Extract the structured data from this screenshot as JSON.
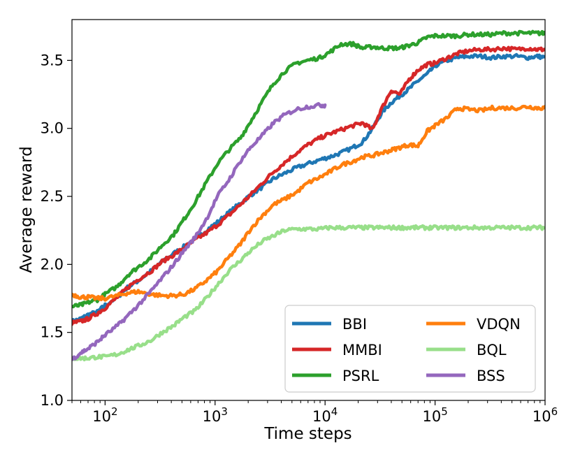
{
  "chart_data": {
    "type": "line",
    "xscale": "log",
    "xlabel": "Time steps",
    "ylabel": "Average reward",
    "xlim": [
      50,
      1000000
    ],
    "ylim": [
      1.0,
      3.8
    ],
    "grid": false,
    "legend_position": "lower-right",
    "legend_columns": 2,
    "xticks": [
      {
        "value": 100,
        "base": "10",
        "exp": "2"
      },
      {
        "value": 1000,
        "base": "10",
        "exp": "3"
      },
      {
        "value": 10000,
        "base": "10",
        "exp": "4"
      },
      {
        "value": 100000,
        "base": "10",
        "exp": "5"
      },
      {
        "value": 1000000,
        "base": "10",
        "exp": "6"
      }
    ],
    "yticks": [
      {
        "value": 1.0,
        "label": "1.0"
      },
      {
        "value": 1.5,
        "label": "1.5"
      },
      {
        "value": 2.0,
        "label": "2.0"
      },
      {
        "value": 2.5,
        "label": "2.5"
      },
      {
        "value": 3.0,
        "label": "3.0"
      },
      {
        "value": 3.5,
        "label": "3.5"
      }
    ],
    "series": [
      {
        "name": "BBI",
        "color": "#1f77b4",
        "points": [
          [
            50,
            1.58
          ],
          [
            60,
            1.6
          ],
          [
            70,
            1.63
          ],
          [
            85,
            1.65
          ],
          [
            100,
            1.7
          ],
          [
            130,
            1.76
          ],
          [
            160,
            1.83
          ],
          [
            200,
            1.88
          ],
          [
            260,
            1.95
          ],
          [
            330,
            2.02
          ],
          [
            420,
            2.08
          ],
          [
            520,
            2.13
          ],
          [
            660,
            2.19
          ],
          [
            830,
            2.25
          ],
          [
            1050,
            2.31
          ],
          [
            1330,
            2.38
          ],
          [
            1700,
            2.45
          ],
          [
            2100,
            2.51
          ],
          [
            2700,
            2.57
          ],
          [
            3400,
            2.63
          ],
          [
            4300,
            2.67
          ],
          [
            5500,
            2.71
          ],
          [
            7000,
            2.74
          ],
          [
            9000,
            2.77
          ],
          [
            11000,
            2.79
          ],
          [
            14000,
            2.82
          ],
          [
            18000,
            2.86
          ],
          [
            22000,
            2.9
          ],
          [
            27000,
            3.0
          ],
          [
            33000,
            3.12
          ],
          [
            40000,
            3.19
          ],
          [
            48000,
            3.24
          ],
          [
            58000,
            3.29
          ],
          [
            70000,
            3.35
          ],
          [
            85000,
            3.4
          ],
          [
            100000,
            3.46
          ],
          [
            130000,
            3.5
          ],
          [
            160000,
            3.52
          ],
          [
            200000,
            3.53
          ],
          [
            260000,
            3.53
          ],
          [
            330000,
            3.52
          ],
          [
            420000,
            3.53
          ],
          [
            550000,
            3.53
          ],
          [
            700000,
            3.52
          ],
          [
            850000,
            3.53
          ],
          [
            1000000,
            3.52
          ]
        ]
      },
      {
        "name": "MMBI",
        "color": "#d62728",
        "points": [
          [
            50,
            1.57
          ],
          [
            60,
            1.58
          ],
          [
            70,
            1.6
          ],
          [
            85,
            1.64
          ],
          [
            100,
            1.68
          ],
          [
            130,
            1.76
          ],
          [
            160,
            1.83
          ],
          [
            200,
            1.89
          ],
          [
            260,
            1.95
          ],
          [
            330,
            2.02
          ],
          [
            420,
            2.07
          ],
          [
            520,
            2.12
          ],
          [
            660,
            2.18
          ],
          [
            830,
            2.23
          ],
          [
            1050,
            2.29
          ],
          [
            1330,
            2.36
          ],
          [
            1700,
            2.44
          ],
          [
            2100,
            2.51
          ],
          [
            2700,
            2.6
          ],
          [
            3400,
            2.68
          ],
          [
            4300,
            2.75
          ],
          [
            5500,
            2.82
          ],
          [
            7000,
            2.88
          ],
          [
            9000,
            2.93
          ],
          [
            11000,
            2.96
          ],
          [
            14000,
            2.99
          ],
          [
            18000,
            3.02
          ],
          [
            22000,
            3.04
          ],
          [
            27000,
            2.99
          ],
          [
            32000,
            3.13
          ],
          [
            40000,
            3.28
          ],
          [
            48000,
            3.25
          ],
          [
            58000,
            3.36
          ],
          [
            70000,
            3.43
          ],
          [
            85000,
            3.47
          ],
          [
            100000,
            3.48
          ],
          [
            130000,
            3.52
          ],
          [
            160000,
            3.55
          ],
          [
            200000,
            3.57
          ],
          [
            260000,
            3.58
          ],
          [
            330000,
            3.58
          ],
          [
            420000,
            3.59
          ],
          [
            550000,
            3.58
          ],
          [
            700000,
            3.59
          ],
          [
            850000,
            3.58
          ],
          [
            1000000,
            3.58
          ]
        ]
      },
      {
        "name": "PSRL",
        "color": "#2ca02c",
        "points": [
          [
            50,
            1.69
          ],
          [
            60,
            1.7
          ],
          [
            70,
            1.72
          ],
          [
            85,
            1.74
          ],
          [
            100,
            1.78
          ],
          [
            130,
            1.84
          ],
          [
            160,
            1.92
          ],
          [
            200,
            1.98
          ],
          [
            260,
            2.05
          ],
          [
            330,
            2.14
          ],
          [
            420,
            2.22
          ],
          [
            520,
            2.33
          ],
          [
            660,
            2.46
          ],
          [
            830,
            2.6
          ],
          [
            1050,
            2.74
          ],
          [
            1330,
            2.84
          ],
          [
            1700,
            2.93
          ],
          [
            2100,
            3.05
          ],
          [
            2700,
            3.2
          ],
          [
            3400,
            3.33
          ],
          [
            4300,
            3.42
          ],
          [
            5500,
            3.48
          ],
          [
            7000,
            3.5
          ],
          [
            9000,
            3.52
          ],
          [
            11000,
            3.56
          ],
          [
            14000,
            3.62
          ],
          [
            18000,
            3.62
          ],
          [
            22000,
            3.59
          ],
          [
            27000,
            3.6
          ],
          [
            33000,
            3.59
          ],
          [
            40000,
            3.59
          ],
          [
            48000,
            3.59
          ],
          [
            58000,
            3.61
          ],
          [
            70000,
            3.63
          ],
          [
            85000,
            3.67
          ],
          [
            100000,
            3.68
          ],
          [
            130000,
            3.68
          ],
          [
            160000,
            3.68
          ],
          [
            200000,
            3.69
          ],
          [
            260000,
            3.69
          ],
          [
            330000,
            3.69
          ],
          [
            420000,
            3.7
          ],
          [
            550000,
            3.7
          ],
          [
            700000,
            3.7
          ],
          [
            850000,
            3.7
          ],
          [
            1000000,
            3.7
          ]
        ]
      },
      {
        "name": "VDQN",
        "color": "#ff7f0e",
        "points": [
          [
            50,
            1.78
          ],
          [
            60,
            1.76
          ],
          [
            70,
            1.76
          ],
          [
            85,
            1.75
          ],
          [
            100,
            1.75
          ],
          [
            130,
            1.77
          ],
          [
            160,
            1.79
          ],
          [
            200,
            1.8
          ],
          [
            260,
            1.78
          ],
          [
            330,
            1.77
          ],
          [
            420,
            1.77
          ],
          [
            520,
            1.78
          ],
          [
            660,
            1.82
          ],
          [
            830,
            1.88
          ],
          [
            1050,
            1.95
          ],
          [
            1330,
            2.05
          ],
          [
            1700,
            2.15
          ],
          [
            2100,
            2.26
          ],
          [
            2700,
            2.36
          ],
          [
            3400,
            2.44
          ],
          [
            4300,
            2.48
          ],
          [
            5500,
            2.53
          ],
          [
            7000,
            2.6
          ],
          [
            9000,
            2.64
          ],
          [
            11000,
            2.68
          ],
          [
            14000,
            2.73
          ],
          [
            18000,
            2.76
          ],
          [
            22000,
            2.79
          ],
          [
            27000,
            2.8
          ],
          [
            33000,
            2.82
          ],
          [
            40000,
            2.84
          ],
          [
            48000,
            2.86
          ],
          [
            58000,
            2.88
          ],
          [
            70000,
            2.87
          ],
          [
            85000,
            2.98
          ],
          [
            100000,
            3.02
          ],
          [
            130000,
            3.08
          ],
          [
            160000,
            3.15
          ],
          [
            200000,
            3.14
          ],
          [
            260000,
            3.13
          ],
          [
            330000,
            3.15
          ],
          [
            420000,
            3.15
          ],
          [
            550000,
            3.15
          ],
          [
            700000,
            3.16
          ],
          [
            850000,
            3.15
          ],
          [
            1000000,
            3.15
          ]
        ]
      },
      {
        "name": "BQL",
        "color": "#98df8a",
        "points": [
          [
            50,
            1.31
          ],
          [
            60,
            1.31
          ],
          [
            70,
            1.31
          ],
          [
            85,
            1.32
          ],
          [
            100,
            1.32
          ],
          [
            130,
            1.34
          ],
          [
            160,
            1.37
          ],
          [
            200,
            1.4
          ],
          [
            260,
            1.44
          ],
          [
            330,
            1.5
          ],
          [
            420,
            1.55
          ],
          [
            520,
            1.61
          ],
          [
            660,
            1.66
          ],
          [
            830,
            1.75
          ],
          [
            1050,
            1.85
          ],
          [
            1330,
            1.95
          ],
          [
            1700,
            2.03
          ],
          [
            2100,
            2.1
          ],
          [
            2700,
            2.17
          ],
          [
            3400,
            2.21
          ],
          [
            4300,
            2.25
          ],
          [
            5500,
            2.26
          ],
          [
            7000,
            2.26
          ],
          [
            9000,
            2.26
          ],
          [
            11000,
            2.27
          ],
          [
            14000,
            2.27
          ],
          [
            18000,
            2.27
          ],
          [
            22000,
            2.27
          ],
          [
            27000,
            2.27
          ],
          [
            33000,
            2.27
          ],
          [
            40000,
            2.27
          ],
          [
            48000,
            2.27
          ],
          [
            58000,
            2.27
          ],
          [
            70000,
            2.27
          ],
          [
            85000,
            2.27
          ],
          [
            100000,
            2.27
          ],
          [
            130000,
            2.27
          ],
          [
            160000,
            2.27
          ],
          [
            200000,
            2.27
          ],
          [
            260000,
            2.27
          ],
          [
            330000,
            2.27
          ],
          [
            420000,
            2.27
          ],
          [
            550000,
            2.27
          ],
          [
            700000,
            2.27
          ],
          [
            850000,
            2.27
          ],
          [
            1000000,
            2.27
          ]
        ]
      },
      {
        "name": "BSS",
        "color": "#9467bd",
        "points": [
          [
            50,
            1.3
          ],
          [
            60,
            1.35
          ],
          [
            70,
            1.38
          ],
          [
            85,
            1.43
          ],
          [
            100,
            1.48
          ],
          [
            130,
            1.55
          ],
          [
            160,
            1.62
          ],
          [
            200,
            1.7
          ],
          [
            260,
            1.8
          ],
          [
            330,
            1.9
          ],
          [
            420,
            2.0
          ],
          [
            520,
            2.1
          ],
          [
            660,
            2.2
          ],
          [
            830,
            2.33
          ],
          [
            1050,
            2.5
          ],
          [
            1330,
            2.62
          ],
          [
            1700,
            2.76
          ],
          [
            2100,
            2.86
          ],
          [
            2700,
            2.95
          ],
          [
            3400,
            3.04
          ],
          [
            4300,
            3.1
          ],
          [
            5500,
            3.14
          ],
          [
            7000,
            3.16
          ],
          [
            9000,
            3.17
          ],
          [
            10000,
            3.17
          ]
        ]
      }
    ]
  }
}
